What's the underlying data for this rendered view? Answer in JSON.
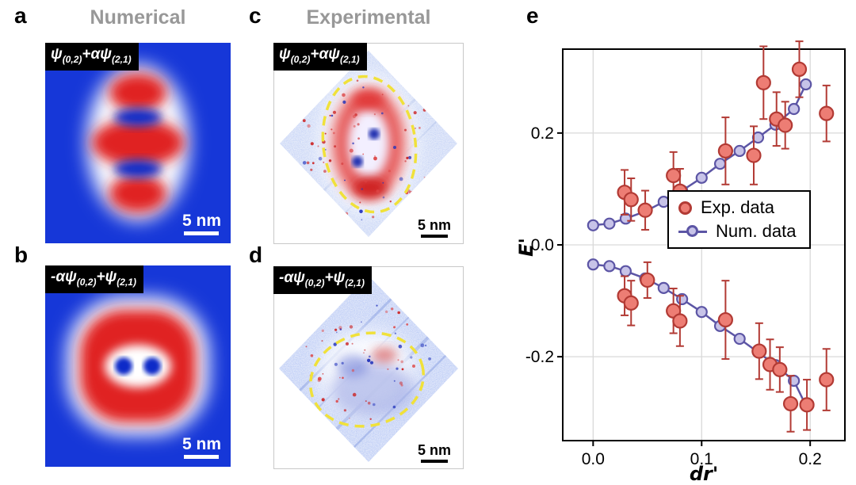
{
  "figure": {
    "panel_letters": {
      "a": "a",
      "b": "b",
      "c": "c",
      "d": "d",
      "e": "e"
    },
    "column_titles": {
      "numerical": "Numerical",
      "experimental": "Experimental"
    }
  },
  "panels": {
    "a": {
      "formula": [
        {
          "t": "ψ"
        },
        {
          "s": "(0,2)"
        },
        {
          "t": "+αψ"
        },
        {
          "s": "(2,1)"
        }
      ],
      "scale_label": "5 nm"
    },
    "b": {
      "formula": [
        {
          "t": "-αψ"
        },
        {
          "s": "(0,2)"
        },
        {
          "t": "+ψ"
        },
        {
          "s": "(2,1)"
        }
      ],
      "scale_label": "5 nm"
    },
    "c": {
      "formula": [
        {
          "t": "ψ"
        },
        {
          "s": "(0,2)"
        },
        {
          "t": "+αψ"
        },
        {
          "s": "(2,1)"
        }
      ],
      "scale_label": "5 nm"
    },
    "d": {
      "formula": [
        {
          "t": "-αψ"
        },
        {
          "s": "(0,2)"
        },
        {
          "t": "+ψ"
        },
        {
          "s": "(2,1)"
        }
      ],
      "scale_label": "5 nm"
    }
  },
  "colors": {
    "background_blue": "#1637d8",
    "wavefunction_red": "#e02020",
    "dashed_ellipse_yellow": "#f0e13a",
    "panel_title_gray": "#989898",
    "exp_marker_fill": "#ed7d74",
    "exp_marker_edge": "#b23a34",
    "num_line": "#5c55a5",
    "num_marker_fill": "#c7c3e8",
    "grid_gray": "#d9d9d9"
  },
  "chart_data": {
    "type": "scatter",
    "title": "",
    "xlabel": "dr'",
    "ylabel": "E'",
    "xlim": [
      -0.028,
      0.232
    ],
    "ylim": [
      -0.35,
      0.35
    ],
    "xticks": [
      0.0,
      0.1,
      0.2
    ],
    "yticks": [
      0.2,
      0.0,
      -0.2
    ],
    "grid": true,
    "legend_position": "center-right",
    "series": [
      {
        "name": "Exp. data",
        "type": "scatter",
        "branch": "upper",
        "color": "#ed7d74",
        "edge_color": "#b23a34",
        "x": [
          0.029,
          0.035,
          0.048,
          0.074,
          0.08,
          0.122,
          0.148,
          0.157,
          0.169,
          0.177,
          0.19,
          0.215
        ],
        "y": [
          0.094,
          0.081,
          0.062,
          0.124,
          0.096,
          0.168,
          0.16,
          0.29,
          0.225,
          0.214,
          0.314,
          0.235
        ],
        "yerr": [
          0.04,
          0.038,
          0.035,
          0.042,
          0.04,
          0.06,
          0.052,
          0.065,
          0.048,
          0.042,
          0.05,
          0.05
        ]
      },
      {
        "name": "Exp. data",
        "type": "scatter",
        "branch": "lower",
        "color": "#ed7d74",
        "edge_color": "#b23a34",
        "x": [
          0.029,
          0.035,
          0.05,
          0.074,
          0.08,
          0.122,
          0.153,
          0.163,
          0.172,
          0.182,
          0.197,
          0.215
        ],
        "y": [
          -0.091,
          -0.104,
          -0.063,
          -0.118,
          -0.136,
          -0.134,
          -0.19,
          -0.214,
          -0.223,
          -0.284,
          -0.286,
          -0.241
        ],
        "yerr": [
          0.035,
          0.04,
          0.032,
          0.04,
          0.045,
          0.07,
          0.05,
          0.045,
          0.04,
          0.05,
          0.045,
          0.055
        ]
      },
      {
        "name": "Num. data",
        "type": "line",
        "branch": "upper",
        "color": "#c7c3e8",
        "line_color": "#5c55a5",
        "x": [
          0.0,
          0.015,
          0.03,
          0.048,
          0.065,
          0.082,
          0.1,
          0.117,
          0.135,
          0.152,
          0.168,
          0.185,
          0.196
        ],
        "y": [
          0.035,
          0.038,
          0.047,
          0.06,
          0.077,
          0.097,
          0.12,
          0.145,
          0.168,
          0.192,
          0.215,
          0.243,
          0.287
        ]
      },
      {
        "name": "Num. data",
        "type": "line",
        "branch": "lower",
        "color": "#c7c3e8",
        "line_color": "#5c55a5",
        "x": [
          0.0,
          0.015,
          0.03,
          0.048,
          0.065,
          0.082,
          0.1,
          0.117,
          0.135,
          0.152,
          0.168,
          0.185,
          0.196
        ],
        "y": [
          -0.035,
          -0.038,
          -0.047,
          -0.06,
          -0.077,
          -0.097,
          -0.12,
          -0.145,
          -0.168,
          -0.192,
          -0.215,
          -0.243,
          -0.287
        ]
      }
    ]
  }
}
